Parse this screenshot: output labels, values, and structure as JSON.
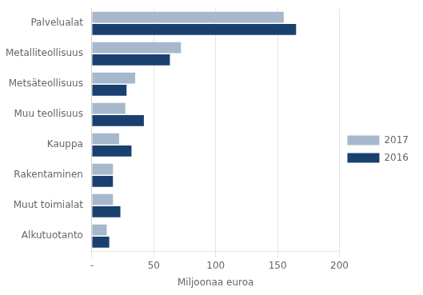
{
  "chart_data": {
    "type": "bar",
    "orientation": "horizontal",
    "categories": [
      "Palvelualat",
      "Metalliteollisuus",
      "Metsäteollisuus",
      "Muu teollisuus",
      "Kauppa",
      "Rakentaminen",
      "Muut toimialat",
      "Alkutuotanto"
    ],
    "series": [
      {
        "name": "2017",
        "color": "#a8b8cc",
        "values": [
          155,
          72,
          35,
          27,
          22,
          17,
          17,
          12
        ]
      },
      {
        "name": "2016",
        "color": "#1a4070",
        "values": [
          165,
          63,
          28,
          42,
          32,
          17,
          23,
          14
        ]
      }
    ],
    "xlabel": "Miljoonaa euroa",
    "xlim": [
      0,
      200
    ],
    "xticks": [
      {
        "value": 0,
        "label": "-"
      },
      50,
      100,
      150,
      200
    ],
    "grid": "x",
    "legend": "right"
  }
}
